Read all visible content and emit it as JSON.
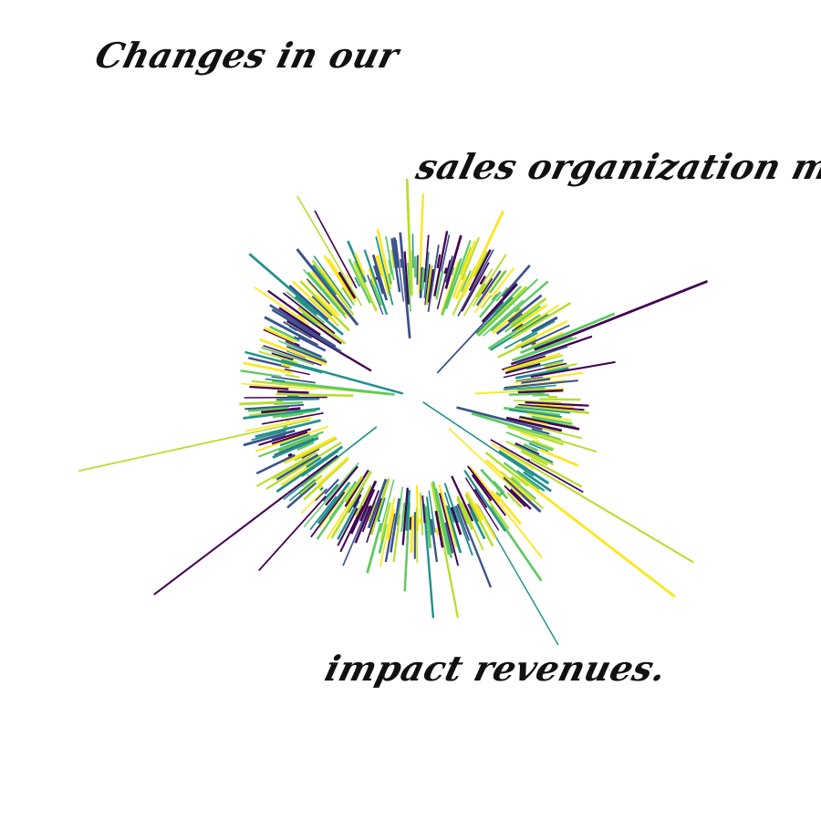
{
  "caption": {
    "line_1": "Changes in our",
    "line_2": "sales organization may",
    "line_3": "impact revenues."
  },
  "graphic": {
    "icon": "radial-burst-illustration",
    "palette": [
      "#440154",
      "#3b528b",
      "#21918c",
      "#5ec962",
      "#b5de2b",
      "#fde725"
    ]
  }
}
